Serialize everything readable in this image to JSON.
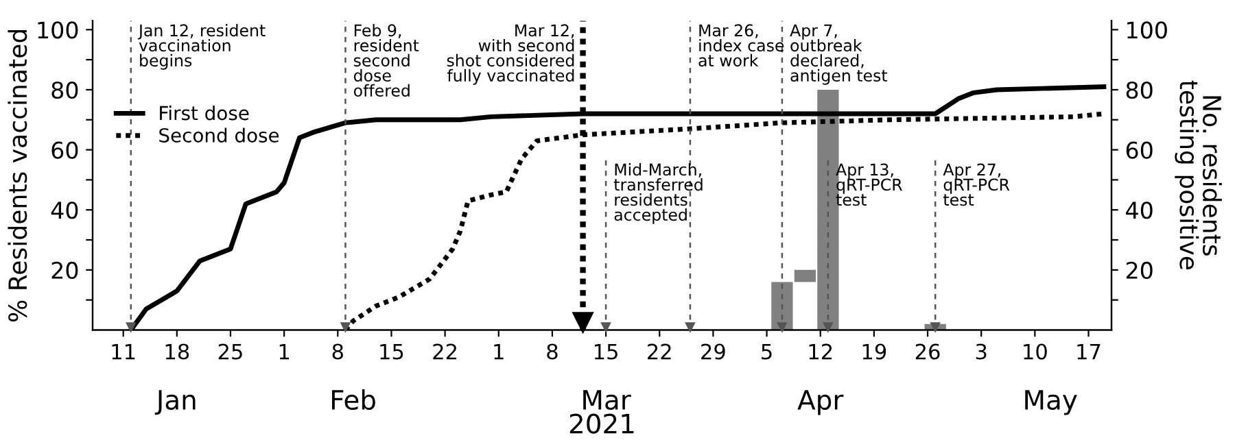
{
  "chart_data": {
    "type": "line",
    "xlabel": "2021",
    "ylabel": "% Residents vaccinated",
    "y2label": "No. residents\ntesting positive",
    "xlim": [
      "2021-01-07",
      "2021-05-20"
    ],
    "xticks": [
      {
        "value": "2021-01-11",
        "label": "11"
      },
      {
        "value": "2021-01-18",
        "label": "18"
      },
      {
        "value": "2021-01-25",
        "label": "25"
      },
      {
        "value": "2021-02-01",
        "label": "1"
      },
      {
        "value": "2021-02-08",
        "label": "8"
      },
      {
        "value": "2021-02-15",
        "label": "15"
      },
      {
        "value": "2021-02-22",
        "label": "22"
      },
      {
        "value": "2021-03-01",
        "label": "1"
      },
      {
        "value": "2021-03-08",
        "label": "8"
      },
      {
        "value": "2021-03-15",
        "label": "15"
      },
      {
        "value": "2021-03-22",
        "label": "22"
      },
      {
        "value": "2021-03-29",
        "label": "29"
      },
      {
        "value": "2021-04-05",
        "label": "5"
      },
      {
        "value": "2021-04-12",
        "label": "12"
      },
      {
        "value": "2021-04-19",
        "label": "19"
      },
      {
        "value": "2021-04-26",
        "label": "26"
      },
      {
        "value": "2021-05-03",
        "label": "3"
      },
      {
        "value": "2021-05-10",
        "label": "10"
      },
      {
        "value": "2021-05-17",
        "label": "17"
      }
    ],
    "x2lim": [
      "2021-01-07",
      "2021-05-20"
    ],
    "x2ticks": [
      {
        "value": "2021-01-18",
        "label": "Jan"
      },
      {
        "value": "2021-02-10",
        "label": "Feb"
      },
      {
        "value": "2021-03-15",
        "label": "Mar"
      },
      {
        "value": "2021-04-12",
        "label": "Apr"
      },
      {
        "value": "2021-05-12",
        "label": "May"
      }
    ],
    "ylim": [
      0,
      103
    ],
    "yticks": [
      {
        "value": 10,
        "label": null
      },
      20,
      {
        "value": 30,
        "label": null
      },
      40,
      {
        "value": 50,
        "label": null
      },
      60,
      {
        "value": 70,
        "label": null
      },
      80,
      {
        "value": 90,
        "label": null
      },
      100
    ],
    "y2lim": [
      0,
      103
    ],
    "y2ticks": [
      {
        "value": 10,
        "label": null
      },
      20,
      {
        "value": 30,
        "label": null
      },
      40,
      {
        "value": 50,
        "label": null
      },
      60,
      {
        "value": 70,
        "label": null
      },
      80,
      {
        "value": 90,
        "label": null
      },
      100
    ],
    "grid": false,
    "legend": "left",
    "series": [
      {
        "name": "First dose",
        "line_style": "solid",
        "color": "#000000",
        "x": [
          "2021-01-12",
          "2021-01-14",
          "2021-01-16",
          "2021-01-18",
          "2021-01-21",
          "2021-01-23",
          "2021-01-25",
          "2021-01-27",
          "2021-01-29",
          "2021-01-31",
          "2021-02-01",
          "2021-02-03",
          "2021-02-05",
          "2021-02-09",
          "2021-02-13",
          "2021-02-24",
          "2021-02-28",
          "2021-03-12",
          "2021-04-27",
          "2021-04-30",
          "2021-05-02",
          "2021-05-05",
          "2021-05-19"
        ],
        "values": [
          0,
          7,
          10,
          13,
          23,
          25,
          27,
          42,
          44,
          46,
          49,
          64,
          66,
          69,
          70,
          70,
          71,
          72,
          72,
          77,
          79,
          80,
          81
        ]
      },
      {
        "name": "Second dose",
        "line_style": "dotted",
        "color": "#000000",
        "x": [
          "2021-02-09",
          "2021-02-10",
          "2021-02-13",
          "2021-02-16",
          "2021-02-20",
          "2021-02-23",
          "2021-02-24",
          "2021-02-25",
          "2021-02-28",
          "2021-03-02",
          "2021-03-04",
          "2021-03-06",
          "2021-03-12",
          "2021-03-26",
          "2021-04-07",
          "2021-04-21",
          "2021-05-15",
          "2021-05-19"
        ],
        "values": [
          0,
          3,
          8,
          11,
          17,
          27,
          33,
          43,
          45,
          46,
          57,
          63,
          65,
          67,
          69,
          70,
          71,
          72
        ]
      },
      {
        "type": "bar",
        "axis": "y2",
        "color": "#808080",
        "x": [
          "2021-04-07",
          "2021-04-10",
          "2021-04-13",
          "2021-04-27"
        ],
        "base": [
          0,
          16,
          0,
          0
        ],
        "values": [
          16,
          4,
          80,
          2
        ]
      }
    ],
    "ref_lines": [
      {
        "axis": "x",
        "value": "2021-01-12",
        "label": "Jan 12, resident\nvaccination\nbegins",
        "line_style": "dashed",
        "color": "#555555"
      },
      {
        "axis": "x",
        "value": "2021-02-09",
        "label": "Feb 9,\nresident\nsecond\ndose\noffered",
        "line_style": "dashed",
        "color": "#555555"
      },
      {
        "axis": "x",
        "value": "2021-03-12",
        "label": "Mar 12,\nwith second\nshot considered\nfully vaccinated",
        "line_style": "dotted",
        "color": "#000000"
      },
      {
        "axis": "x",
        "value": "2021-03-15",
        "label": "Mid-March,\ntransferred\nresidents\naccepted",
        "line_style": "dashed",
        "color": "#555555"
      },
      {
        "axis": "x",
        "value": "2021-03-26",
        "label": "Mar 26,\nindex case\nat work",
        "line_style": "dashed",
        "color": "#555555"
      },
      {
        "axis": "x",
        "value": "2021-04-07",
        "label": "Apr 7,\noutbreak\ndeclared,\nantigen test",
        "line_style": "dashed",
        "color": "#555555"
      },
      {
        "axis": "x",
        "value": "2021-04-13",
        "label": "Apr 13,\nqRT-PCR\ntest",
        "line_style": "dashed",
        "color": "#555555"
      },
      {
        "axis": "x",
        "value": "2021-04-27",
        "label": "Apr 27,\nqRT-PCR\ntest",
        "line_style": "dashed",
        "color": "#555555"
      }
    ]
  }
}
